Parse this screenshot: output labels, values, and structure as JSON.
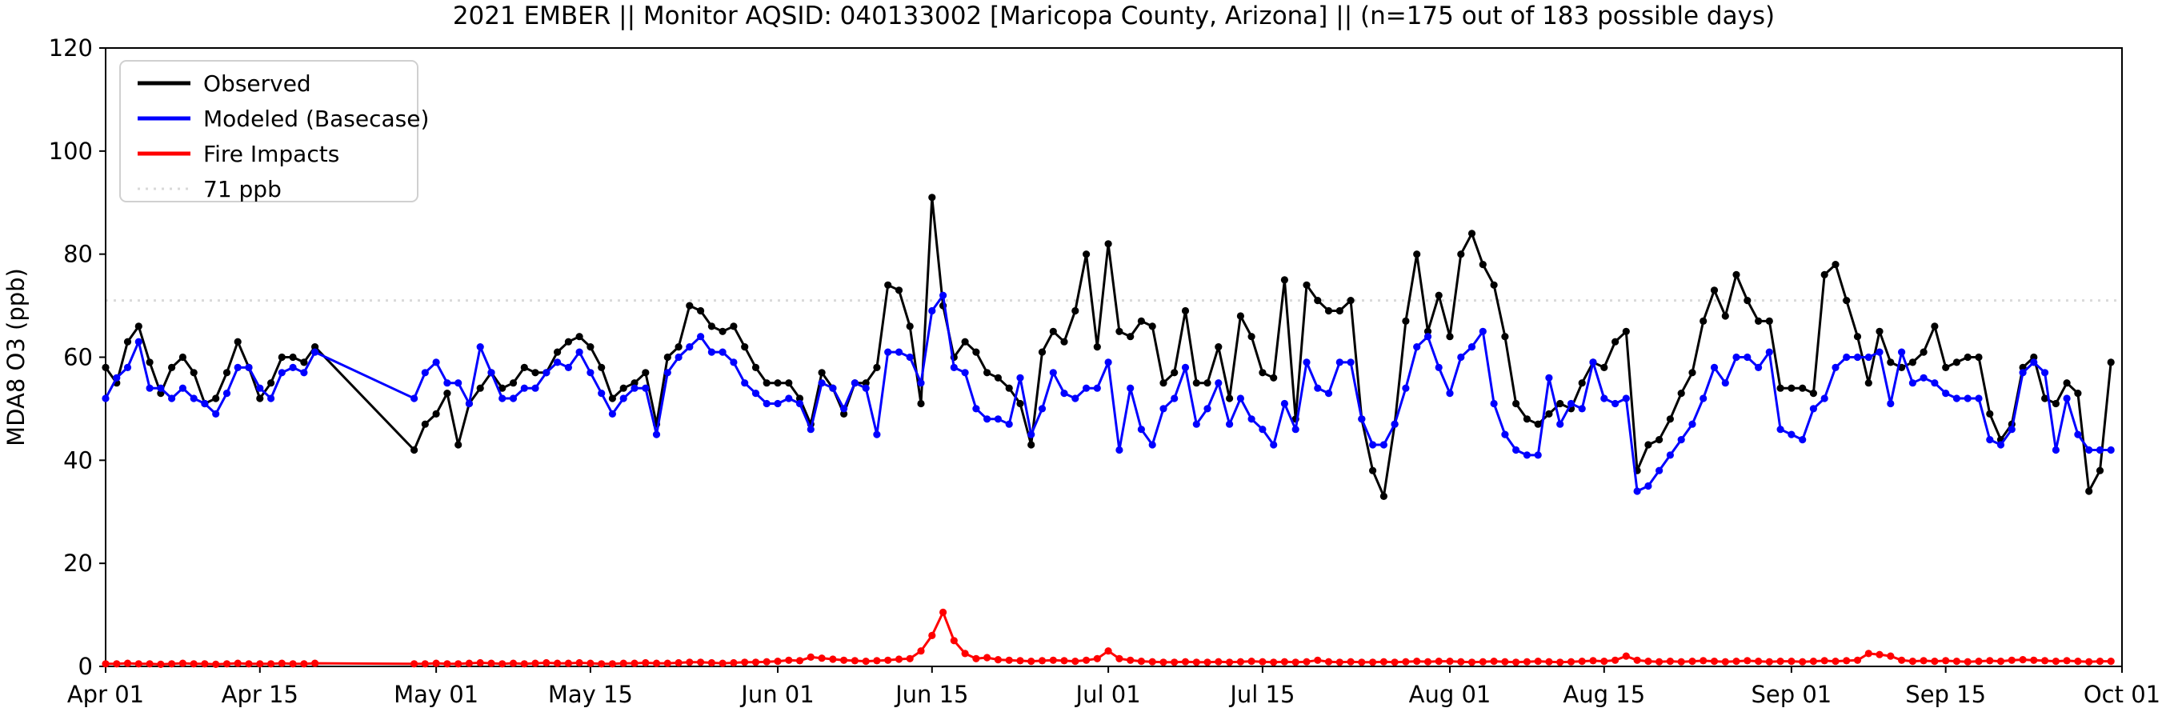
{
  "title": "2021 EMBER || Monitor AQSID: 040133002 [Maricopa County, Arizona] || (n=175 out of 183 possible days)",
  "ylabel": "MDA8 O3 (ppb)",
  "monitor": {
    "year": "2021",
    "program": "EMBER",
    "aqsid": "040133002",
    "county": "Maricopa County, Arizona",
    "days_with_data": 175,
    "possible_days": 183
  },
  "legend": {
    "items": [
      {
        "label": "Observed",
        "color": "#000000",
        "style": "solid"
      },
      {
        "label": "Modeled (Basecase)",
        "color": "#0000ff",
        "style": "solid"
      },
      {
        "label": "Fire Impacts",
        "color": "#ff0000",
        "style": "solid"
      },
      {
        "label": "71 ppb",
        "color": "#d9d9d9",
        "style": "dotted"
      }
    ]
  },
  "chart_data": {
    "type": "line",
    "x_start_date": "2021-04-01",
    "x_days_total": 183,
    "x_tick_labels": [
      "Apr 01",
      "Apr 15",
      "May 01",
      "May 15",
      "Jun 01",
      "Jun 15",
      "Jul 01",
      "Jul 15",
      "Aug 01",
      "Aug 15",
      "Sep 01",
      "Sep 15",
      "Oct 01"
    ],
    "x_tick_day_index": [
      0,
      14,
      30,
      44,
      61,
      75,
      91,
      105,
      122,
      136,
      153,
      167,
      183
    ],
    "ylim": [
      0,
      120
    ],
    "yticks": [
      0,
      20,
      40,
      60,
      80,
      100,
      120
    ],
    "grid": false,
    "legend_position": "upper left",
    "threshold_line": {
      "value": 71,
      "label": "71 ppb",
      "color": "#d9d9d9",
      "style": "dotted"
    },
    "missing_days_note": "Apr 21 - Apr 28 have no data; lines connect straight across the gap",
    "series": [
      {
        "name": "Observed",
        "color": "#000000",
        "values": [
          58,
          55,
          63,
          66,
          59,
          53,
          58,
          60,
          57,
          51,
          52,
          57,
          63,
          58,
          52,
          55,
          60,
          60,
          59,
          62,
          null,
          null,
          null,
          null,
          null,
          null,
          null,
          null,
          42,
          47,
          49,
          53,
          43,
          51,
          54,
          57,
          54,
          55,
          58,
          57,
          57,
          61,
          63,
          64,
          62,
          58,
          52,
          54,
          55,
          57,
          47,
          60,
          62,
          70,
          69,
          66,
          65,
          66,
          62,
          58,
          55,
          55,
          55,
          52,
          47,
          57,
          54,
          49,
          55,
          55,
          58,
          74,
          73,
          66,
          51,
          91,
          70,
          60,
          63,
          61,
          57,
          56,
          54,
          51,
          43,
          61,
          65,
          63,
          69,
          80,
          62,
          82,
          65,
          64,
          67,
          66,
          55,
          57,
          69,
          55,
          55,
          62,
          52,
          68,
          64,
          57,
          56,
          75,
          48,
          74,
          71,
          69,
          69,
          71,
          48,
          38,
          33,
          47,
          67,
          80,
          65,
          72,
          64,
          80,
          84,
          78,
          74,
          64,
          51,
          48,
          47,
          49,
          51,
          50,
          55,
          59,
          58,
          63,
          65,
          38,
          43,
          44,
          48,
          53,
          57,
          67,
          73,
          68,
          76,
          71,
          67,
          67,
          54,
          54,
          54,
          53,
          76,
          78,
          71,
          64,
          55,
          65,
          59,
          58,
          59,
          61,
          66,
          58,
          59,
          60,
          60,
          49,
          44,
          47,
          58,
          60,
          52,
          51,
          55,
          53,
          34,
          38,
          59
        ]
      },
      {
        "name": "Modeled (Basecase)",
        "color": "#0000ff",
        "values": [
          52,
          56,
          58,
          63,
          54,
          54,
          52,
          54,
          52,
          51,
          49,
          53,
          58,
          58,
          54,
          52,
          57,
          58,
          57,
          61,
          null,
          null,
          null,
          null,
          null,
          null,
          null,
          null,
          52,
          57,
          59,
          55,
          55,
          51,
          62,
          57,
          52,
          52,
          54,
          54,
          57,
          59,
          58,
          61,
          57,
          53,
          49,
          52,
          54,
          54,
          45,
          57,
          60,
          62,
          64,
          61,
          61,
          59,
          55,
          53,
          51,
          51,
          52,
          51,
          46,
          55,
          54,
          50,
          55,
          54,
          45,
          61,
          61,
          60,
          55,
          69,
          72,
          58,
          57,
          50,
          48,
          48,
          47,
          56,
          45,
          50,
          57,
          53,
          52,
          54,
          54,
          59,
          42,
          54,
          46,
          43,
          50,
          52,
          58,
          47,
          50,
          55,
          47,
          52,
          48,
          46,
          43,
          51,
          46,
          59,
          54,
          53,
          59,
          59,
          48,
          43,
          43,
          47,
          54,
          62,
          64,
          58,
          53,
          60,
          62,
          65,
          51,
          45,
          42,
          41,
          41,
          56,
          47,
          51,
          50,
          59,
          52,
          51,
          52,
          34,
          35,
          38,
          41,
          44,
          47,
          52,
          58,
          55,
          60,
          60,
          58,
          61,
          46,
          45,
          44,
          50,
          52,
          58,
          60,
          60,
          60,
          61,
          51,
          61,
          55,
          56,
          55,
          53,
          52,
          52,
          52,
          44,
          43,
          46,
          57,
          59,
          57,
          42,
          52,
          45,
          42,
          42,
          42
        ]
      },
      {
        "name": "Fire Impacts",
        "color": "#ff0000",
        "values": [
          0.5,
          0.5,
          0.6,
          0.5,
          0.5,
          0.4,
          0.5,
          0.6,
          0.5,
          0.5,
          0.4,
          0.5,
          0.6,
          0.5,
          0.5,
          0.5,
          0.6,
          0.5,
          0.5,
          0.6,
          null,
          null,
          null,
          null,
          null,
          null,
          null,
          null,
          0.5,
          0.5,
          0.6,
          0.5,
          0.5,
          0.6,
          0.7,
          0.6,
          0.5,
          0.6,
          0.5,
          0.6,
          0.7,
          0.6,
          0.6,
          0.7,
          0.6,
          0.5,
          0.5,
          0.6,
          0.6,
          0.7,
          0.6,
          0.6,
          0.7,
          0.8,
          0.8,
          0.7,
          0.6,
          0.7,
          0.8,
          0.8,
          0.9,
          1.0,
          1.2,
          1.1,
          1.8,
          1.6,
          1.4,
          1.2,
          1.1,
          1.0,
          1.1,
          1.2,
          1.4,
          1.5,
          3.0,
          6.0,
          10.5,
          5.0,
          2.5,
          1.5,
          1.7,
          1.3,
          1.2,
          1.1,
          1.0,
          1.1,
          1.2,
          1.1,
          1.0,
          1.2,
          1.5,
          3.0,
          1.5,
          1.2,
          1.0,
          0.9,
          0.8,
          0.8,
          0.9,
          0.8,
          0.8,
          0.9,
          0.8,
          0.9,
          1.0,
          0.9,
          0.8,
          0.9,
          0.8,
          0.9,
          1.2,
          0.9,
          0.8,
          0.9,
          0.8,
          0.8,
          0.9,
          0.8,
          0.9,
          1.0,
          0.9,
          1.0,
          1.0,
          0.9,
          0.8,
          0.9,
          1.0,
          0.9,
          0.8,
          0.9,
          1.0,
          0.9,
          0.8,
          0.9,
          1.0,
          1.1,
          1.0,
          1.2,
          2.0,
          1.2,
          1.0,
          0.9,
          1.0,
          0.9,
          1.0,
          1.1,
          1.0,
          0.9,
          1.0,
          1.1,
          1.0,
          0.9,
          1.0,
          1.0,
          0.9,
          1.0,
          1.1,
          1.0,
          1.1,
          1.2,
          2.5,
          2.3,
          2.0,
          1.2,
          1.0,
          1.1,
          1.0,
          1.1,
          1.0,
          0.9,
          1.0,
          1.1,
          1.0,
          1.2,
          1.3,
          1.2,
          1.1,
          1.0,
          1.1,
          1.0,
          0.9,
          1.0,
          1.0
        ]
      }
    ]
  }
}
